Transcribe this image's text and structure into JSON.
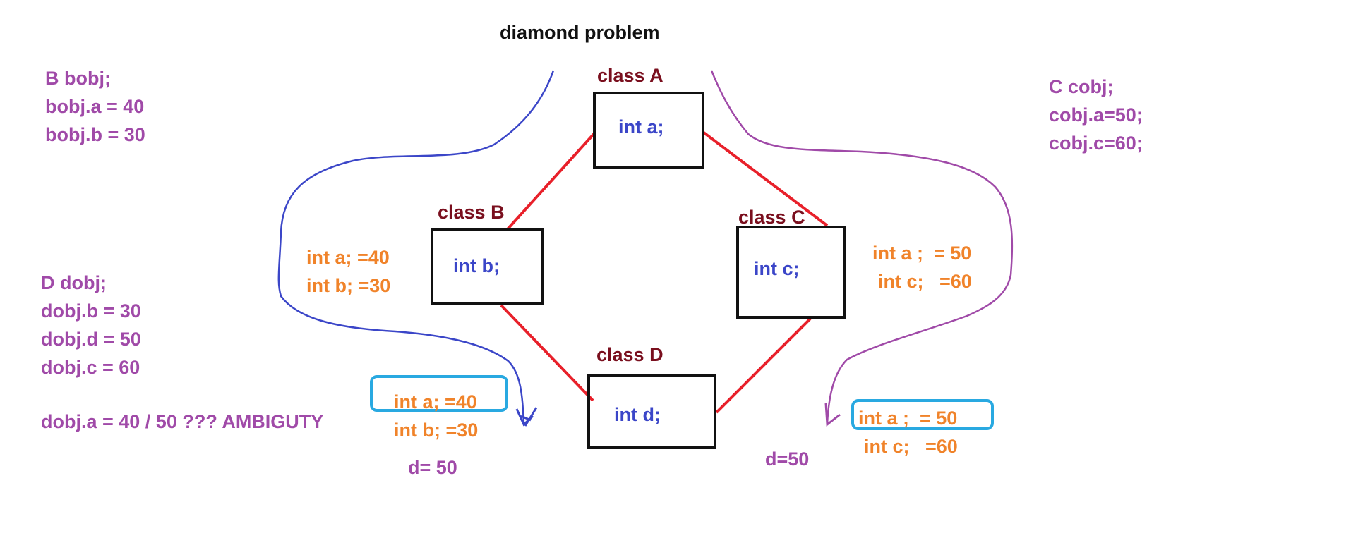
{
  "title": "diamond problem",
  "classes": {
    "a": {
      "name": "class A",
      "member": "int a;"
    },
    "b": {
      "name": "class B",
      "member": "int b;"
    },
    "c": {
      "name": "class C",
      "member": "int c;"
    },
    "d": {
      "name": "class D",
      "member": "int d;"
    }
  },
  "notes": {
    "b_obj": [
      "B bobj;",
      "bobj.a = 40",
      "bobj.b = 30"
    ],
    "c_obj": [
      "C cobj;",
      "cobj.a=50;",
      "cobj.c=60;"
    ],
    "d_obj": [
      "D dobj;",
      "dobj.b = 30",
      "dobj.d = 50",
      "dobj.c = 60"
    ],
    "ambiguity": "dobj.a = 40 / 50 ??? AMBIGUTY"
  },
  "values": {
    "b_a": "int a; =40",
    "b_b": "int b; =30",
    "c_a": "int a ;  = 50",
    "c_c": "int c;   =60",
    "d_left_a": "int a; =40",
    "d_left_b": "int b; =30",
    "d_left_d": "d= 50",
    "d_right_a": "int a ;  = 50",
    "d_right_c": "int c;   =60",
    "d_right_d": "d=50"
  },
  "colors": {
    "purple": "#a04aa8",
    "orange": "#f0832a",
    "blue": "#3b46c8",
    "maroon": "#7a0f1e",
    "edge": "#e8202a",
    "highlight": "#29a9e1",
    "left_arrow": "#3b46c8",
    "right_arrow": "#a04aa8"
  }
}
